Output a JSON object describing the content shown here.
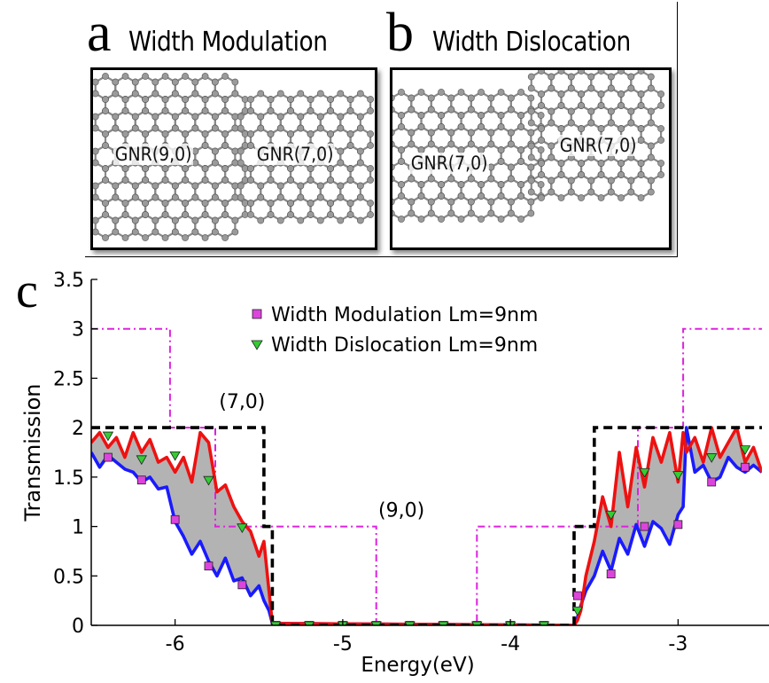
{
  "panels": {
    "a": {
      "letter": "a",
      "title": "Width Modulation",
      "labels": [
        "GNR(9,0)",
        "GNR(7,0)"
      ]
    },
    "b": {
      "letter": "b",
      "title": "Width Dislocation",
      "labels": [
        "GNR(7,0)",
        "GNR(7,0)"
      ]
    },
    "c": {
      "letter": "c"
    }
  },
  "chart_data": {
    "type": "line",
    "xlabel": "Energy(eV)",
    "ylabel": "Transmission",
    "xlim": [
      -6.5,
      -2.5
    ],
    "ylim": [
      0,
      3.5
    ],
    "xticks": [
      -6,
      -5,
      -4,
      -3
    ],
    "xtick_labels": [
      "-6",
      "-5",
      "-4",
      "-3"
    ],
    "yticks": [
      0,
      0.5,
      1,
      1.5,
      2,
      2.5,
      3,
      3.5
    ],
    "ytick_labels": [
      "0",
      "0.5",
      "1",
      "1.5",
      "2",
      "2.5",
      "3",
      "3.5"
    ],
    "legend": {
      "placement": "top-center",
      "entries": [
        "Width Modulation Lm=9nm",
        "Width Dislocation Lm=9nm"
      ]
    },
    "annotations": [
      {
        "text": "(7,0)",
        "x": -5.6,
        "y": 2.2
      },
      {
        "text": "(9,0)",
        "x": -4.65,
        "y": 1.1
      }
    ],
    "colors": {
      "modulation_line": "#1a1aff",
      "dislocation_line": "#ee1111",
      "gnr70_step": "#000000",
      "gnr90_step": "#dd22dd",
      "fill": "#b3b3b3",
      "square_marker": "#dd44dd",
      "triangle_marker": "#33cc33"
    },
    "series": [
      {
        "style": "dashed black step",
        "x": [
          -6.5,
          -5.47,
          -5.47,
          -5.42,
          -5.42,
          -3.62,
          -3.62,
          -3.5,
          -3.5,
          -2.5
        ],
        "y": [
          2,
          2,
          1,
          1,
          0,
          0,
          1,
          1,
          2,
          2
        ]
      },
      {
        "style": "dash-dot magenta step",
        "x": [
          -6.5,
          -6.03,
          -6.03,
          -5.76,
          -5.76,
          -4.8,
          -4.8,
          -4.2,
          -4.2,
          -3.24,
          -3.24,
          -2.97,
          -2.97,
          -2.5
        ],
        "y": [
          3,
          3,
          2,
          2,
          1,
          1,
          0,
          0,
          1,
          1,
          2,
          2,
          3,
          3
        ]
      },
      {
        "style": "blue solid",
        "x": [
          -6.5,
          -6.45,
          -6.4,
          -6.35,
          -6.3,
          -6.25,
          -6.2,
          -6.15,
          -6.1,
          -6.05,
          -6.0,
          -5.95,
          -5.9,
          -5.85,
          -5.8,
          -5.75,
          -5.7,
          -5.65,
          -5.6,
          -5.55,
          -5.5,
          -5.47,
          -5.44,
          -5.42,
          -3.62,
          -3.6,
          -3.58,
          -3.55,
          -3.5,
          -3.45,
          -3.4,
          -3.35,
          -3.3,
          -3.25,
          -3.2,
          -3.15,
          -3.1,
          -3.05,
          -3.0,
          -2.97,
          -2.95,
          -2.9,
          -2.85,
          -2.8,
          -2.75,
          -2.7,
          -2.65,
          -2.6,
          -2.55,
          -2.5
        ],
        "y": [
          1.75,
          1.6,
          1.72,
          1.65,
          1.58,
          1.55,
          1.45,
          1.5,
          1.38,
          1.4,
          1.05,
          0.9,
          0.72,
          0.85,
          0.65,
          0.5,
          0.68,
          0.45,
          0.48,
          0.3,
          0.4,
          0.25,
          0.15,
          0.02,
          0.0,
          0.08,
          0.2,
          0.35,
          0.5,
          0.75,
          0.55,
          0.88,
          0.72,
          1.02,
          0.8,
          1.05,
          0.98,
          0.82,
          1.12,
          1.2,
          2.0,
          1.55,
          1.62,
          1.45,
          1.5,
          1.7,
          1.6,
          1.55,
          1.62,
          1.55
        ]
      },
      {
        "style": "red solid",
        "x": [
          -6.5,
          -6.45,
          -6.4,
          -6.35,
          -6.3,
          -6.25,
          -6.2,
          -6.15,
          -6.1,
          -6.05,
          -6.0,
          -5.95,
          -5.9,
          -5.85,
          -5.8,
          -5.75,
          -5.7,
          -5.65,
          -5.6,
          -5.55,
          -5.5,
          -5.47,
          -5.44,
          -5.42,
          -3.62,
          -3.6,
          -3.58,
          -3.55,
          -3.5,
          -3.45,
          -3.4,
          -3.35,
          -3.3,
          -3.25,
          -3.2,
          -3.15,
          -3.1,
          -3.05,
          -3.0,
          -2.97,
          -2.95,
          -2.9,
          -2.85,
          -2.8,
          -2.75,
          -2.7,
          -2.65,
          -2.6,
          -2.55,
          -2.5
        ],
        "y": [
          1.85,
          1.95,
          1.8,
          1.9,
          1.7,
          1.95,
          1.75,
          1.88,
          1.65,
          1.7,
          1.55,
          1.7,
          1.45,
          1.95,
          1.85,
          1.35,
          1.42,
          1.2,
          1.05,
          0.95,
          0.7,
          0.85,
          0.35,
          0.02,
          0.0,
          0.05,
          0.15,
          0.5,
          0.85,
          1.3,
          1.0,
          1.75,
          1.2,
          1.8,
          1.4,
          1.9,
          1.65,
          1.95,
          1.45,
          1.95,
          1.75,
          1.9,
          1.65,
          2.0,
          1.7,
          1.85,
          2.0,
          1.65,
          1.8,
          1.55
        ]
      }
    ],
    "markers": {
      "width_modulation": {
        "shape": "square",
        "x": [
          -6.4,
          -6.2,
          -6.0,
          -5.8,
          -5.6,
          -5.4,
          -5.2,
          -5.0,
          -4.8,
          -4.6,
          -4.4,
          -4.2,
          -4.0,
          -3.8,
          -3.6,
          -3.4,
          -3.2,
          -3.0,
          -2.8,
          -2.6
        ],
        "y": [
          1.7,
          1.47,
          1.07,
          0.6,
          0.41,
          0,
          0,
          0,
          0,
          0,
          0,
          0,
          0,
          0,
          0.3,
          0.52,
          1.0,
          1.02,
          1.45,
          1.6
        ]
      },
      "width_dislocation": {
        "shape": "triangle",
        "x": [
          -6.4,
          -6.2,
          -6.0,
          -5.8,
          -5.6,
          -5.4,
          -5.2,
          -5.0,
          -4.8,
          -4.6,
          -4.4,
          -4.2,
          -4.0,
          -3.8,
          -3.6,
          -3.4,
          -3.2,
          -3.0,
          -2.8,
          -2.6
        ],
        "y": [
          1.92,
          1.68,
          1.72,
          1.47,
          0.99,
          0,
          0,
          0,
          0,
          0,
          0,
          0,
          0,
          0,
          0.15,
          1.12,
          1.55,
          1.52,
          1.7,
          1.78
        ]
      }
    }
  }
}
